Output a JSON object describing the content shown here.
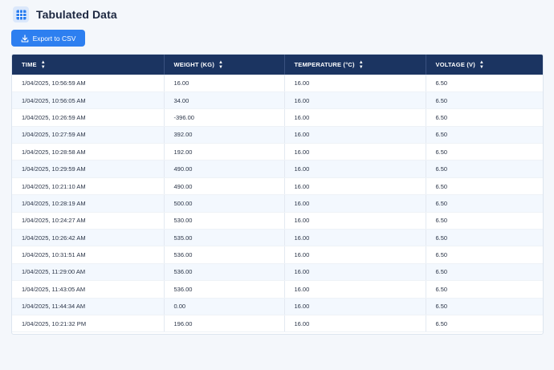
{
  "header": {
    "title": "Tabulated Data",
    "icon": "table-grid-icon"
  },
  "toolbar": {
    "export_label": "Export to CSV",
    "export_icon": "download-icon"
  },
  "colors": {
    "accent": "#2d7ff0",
    "table_header": "#1b3461",
    "row_alt": "#f3f8fe"
  },
  "table": {
    "columns": [
      "TIME",
      "WEIGHT (KG)",
      "TEMPERATURE (°C)",
      "VOLTAGE (V)"
    ],
    "rows": [
      [
        "1/04/2025,  10:56:59 AM",
        "16.00",
        "16.00",
        "6.50"
      ],
      [
        "1/04/2025,  10:56:05 AM",
        "34.00",
        "16.00",
        "6.50"
      ],
      [
        "1/04/2025,  10:26:59 AM",
        "-396.00",
        "16.00",
        "6.50"
      ],
      [
        "1/04/2025,  10:27:59 AM",
        "392.00",
        "16.00",
        "6.50"
      ],
      [
        "1/04/2025,  10:28:58 AM",
        "192.00",
        "16.00",
        "6.50"
      ],
      [
        "1/04/2025,  10:29:59 AM",
        "490.00",
        "16.00",
        "6.50"
      ],
      [
        "1/04/2025,  10:21:10 AM",
        "490.00",
        "16.00",
        "6.50"
      ],
      [
        "1/04/2025,  10:28:19 AM",
        "500.00",
        "16.00",
        "6.50"
      ],
      [
        "1/04/2025,  10:24:27 AM",
        "530.00",
        "16.00",
        "6.50"
      ],
      [
        "1/04/2025,  10:26:42 AM",
        "535.00",
        "16.00",
        "6.50"
      ],
      [
        "1/04/2025,  10:31:51 AM",
        "536.00",
        "16.00",
        "6.50"
      ],
      [
        "1/04/2025,  11:29:00 AM",
        "536.00",
        "16.00",
        "6.50"
      ],
      [
        "1/04/2025,  11:43:05 AM",
        "536.00",
        "16.00",
        "6.50"
      ],
      [
        "1/04/2025,  11:44:34 AM",
        "0.00",
        "16.00",
        "6.50"
      ],
      [
        "1/04/2025,  10:21:32 PM",
        "196.00",
        "16.00",
        "6.50"
      ]
    ]
  }
}
